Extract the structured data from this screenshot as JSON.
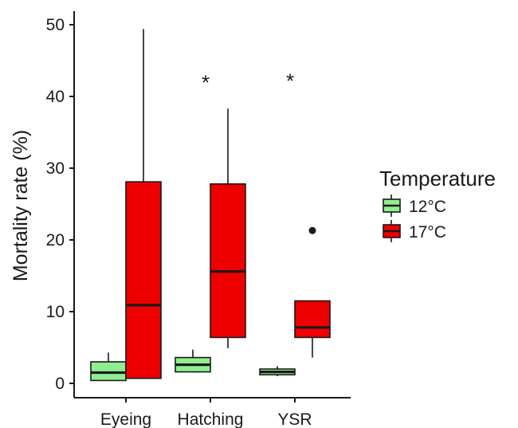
{
  "chart_data": {
    "type": "box",
    "title": "",
    "xlabel": "",
    "ylabel": "Mortality rate (%)",
    "ylim": [
      -1.6,
      52
    ],
    "yticks": [
      0,
      10,
      20,
      30,
      40,
      50
    ],
    "categories": [
      "Eyeing",
      "Hatching",
      "YSR"
    ],
    "series": [
      {
        "name": "12°C",
        "color": "#90ee90",
        "boxes": [
          {
            "category": "Eyeing",
            "min": 0.4,
            "q1": 0.4,
            "median": 1.5,
            "q3": 3.0,
            "max": 4.3,
            "outliers": []
          },
          {
            "category": "Hatching",
            "min": 1.5,
            "q1": 1.6,
            "median": 2.6,
            "q3": 3.6,
            "max": 4.7,
            "outliers": []
          },
          {
            "category": "YSR",
            "min": 1.0,
            "q1": 1.2,
            "median": 1.6,
            "q3": 2.0,
            "max": 2.4,
            "outliers": []
          }
        ]
      },
      {
        "name": "17°C",
        "color": "#ee0000",
        "boxes": [
          {
            "category": "Eyeing",
            "min": 0.7,
            "q1": 0.7,
            "median": 10.9,
            "q3": 28.1,
            "max": 49.4,
            "outliers": []
          },
          {
            "category": "Hatching",
            "min": 4.9,
            "q1": 6.4,
            "median": 15.6,
            "q3": 27.8,
            "max": 38.3,
            "outliers": []
          },
          {
            "category": "YSR",
            "min": 3.6,
            "q1": 6.4,
            "median": 7.8,
            "q3": 11.5,
            "max": 11.5,
            "outliers": [
              21.3
            ]
          }
        ]
      }
    ],
    "annotations": [
      {
        "category": "Hatching",
        "text": "*",
        "y": 42.5
      },
      {
        "category": "YSR",
        "text": "*",
        "y": 42.7
      }
    ],
    "legend": {
      "title": "Temperature",
      "position": "right"
    },
    "grid": false
  }
}
